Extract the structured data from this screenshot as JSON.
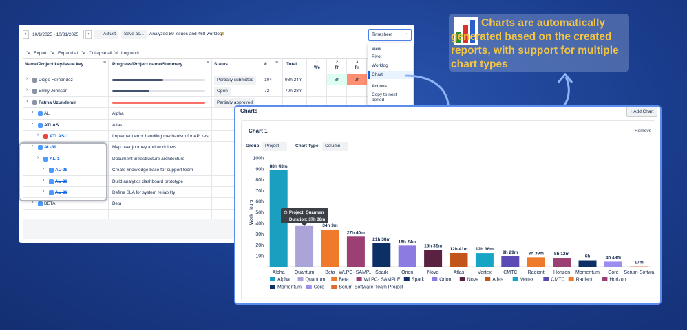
{
  "toolbar": {
    "date_range": "10/1/2025 - 10/31/2025",
    "adjust": "Adjust",
    "save": "Save as...",
    "analyzed": "Analyzed 89 issues and 468 worklogs",
    "view_select": "Timesheet"
  },
  "actions": [
    "Export",
    "Expand all",
    "Collapse all",
    "Log work"
  ],
  "table": {
    "headers": {
      "name": "Name/Project key/Issue key",
      "summary": "Progress/Project name/Summary",
      "status": "Status",
      "count": "#",
      "total": "Total"
    },
    "days": [
      {
        "num": "1",
        "day": "We"
      },
      {
        "num": "2",
        "day": "Th"
      },
      {
        "num": "3",
        "day": "Fr"
      }
    ],
    "rows": [
      {
        "key": "Diego Fernandez",
        "status": "Partially submitted",
        "count": "104",
        "total": "98h 24m",
        "days": [
          null,
          "8h",
          "2h"
        ]
      },
      {
        "key": "Emily Johnson",
        "status": "Open",
        "count": "72",
        "total": "70h 28m"
      },
      {
        "key": "Fatma Uzundemir",
        "status": "Partially approved"
      },
      {
        "key": "AL",
        "summary": "Alpha"
      },
      {
        "key": "ATLAS",
        "summary": "Atlas"
      },
      {
        "key": "ATLAS-1",
        "summary": "Implement error handling mechanism for API respo..."
      },
      {
        "key": "AL-39",
        "summary": "Map user journey and workflows"
      },
      {
        "key": "AL-1",
        "summary": "Document infrastructure architecture"
      },
      {
        "key": "AL-28",
        "summary": "Create knowledge base for support team"
      },
      {
        "key": "AL-29",
        "summary": "Build analytics dashboard prototype"
      },
      {
        "key": "AL-30",
        "summary": "Define SLA for system reliability"
      },
      {
        "key": "BETA",
        "summary": "Beta"
      }
    ]
  },
  "menu": {
    "view_heading": "View",
    "view_items": [
      "Pivot",
      "Worklog",
      "Chart"
    ],
    "actions_heading": "Actions",
    "action_items": [
      "Copy to next period"
    ]
  },
  "callout": "Charts are automatically generated based on the created reports, with support for multiple chart types",
  "charts_panel": {
    "title": "Charts",
    "add_button": "+ Add Chart",
    "card_title": "Chart 1",
    "remove": "Remove",
    "group_label": "Group:",
    "group_value": "Project",
    "type_label": "Chart Type:",
    "type_value": "Column",
    "tooltip": [
      "Project: Quantum",
      "Duration: 37h 30m"
    ]
  },
  "chart_data": {
    "type": "bar",
    "y_label": "Work Hours",
    "categories": [
      "Alpha",
      "Quantum",
      "Beta",
      "WLPC- SAMP...",
      "Spark",
      "Orion",
      "Nova",
      "Atlas",
      "Vertex",
      "CMTC",
      "Radiant",
      "Horizon",
      "Momentum",
      "Core",
      "Scrum-Softwa"
    ],
    "values": [
      88.72,
      37.5,
      34.05,
      27.67,
      21.63,
      19.4,
      15.53,
      12.68,
      12.6,
      9.48,
      8.65,
      8.2,
      6,
      4.8,
      0.28
    ],
    "value_labels": [
      "88h 43m",
      null,
      "34h 3m",
      "27h 40m",
      "21h 38m",
      "19h 24m",
      "15h 32m",
      "12h 41m",
      "12h 36m",
      "9h 29m",
      "8h 39m",
      "8h 12m",
      "6h",
      "4h 48m",
      "17m"
    ],
    "colors": [
      "#1a9fc0",
      "#aaa4d8",
      "#f07a2b",
      "#9c3f72",
      "#0c2f66",
      "#8c7be0",
      "#5b2140",
      "#c2561a",
      "#17a5c6",
      "#5a4bb5",
      "#f07a2b",
      "#9c3f72",
      "#0c2f66",
      "#9b8ef0",
      "#e06c2a"
    ],
    "legend": [
      "Alpha",
      "Quantum",
      "Beta",
      "WLPC- SAMPLE",
      "Spark",
      "Orion",
      "Nova",
      "Atlas",
      "Vertex",
      "CMTC",
      "Radiant",
      "Horizon",
      "Momentum",
      "Core",
      "Scrum-Software-Team Project"
    ],
    "ylim": [
      0,
      100
    ],
    "yticks": [
      {
        "value": 10,
        "label": "10h"
      },
      {
        "value": 20,
        "label": "20h"
      },
      {
        "value": 30,
        "label": "30h"
      },
      {
        "value": 40,
        "label": "40h"
      },
      {
        "value": 50,
        "label": "50h"
      },
      {
        "value": 60,
        "label": "60h"
      },
      {
        "value": 70,
        "label": "70h"
      },
      {
        "value": 80,
        "label": "80h"
      },
      {
        "value": 90,
        "label": "90h"
      },
      {
        "value": 100,
        "label": "100h"
      }
    ]
  }
}
